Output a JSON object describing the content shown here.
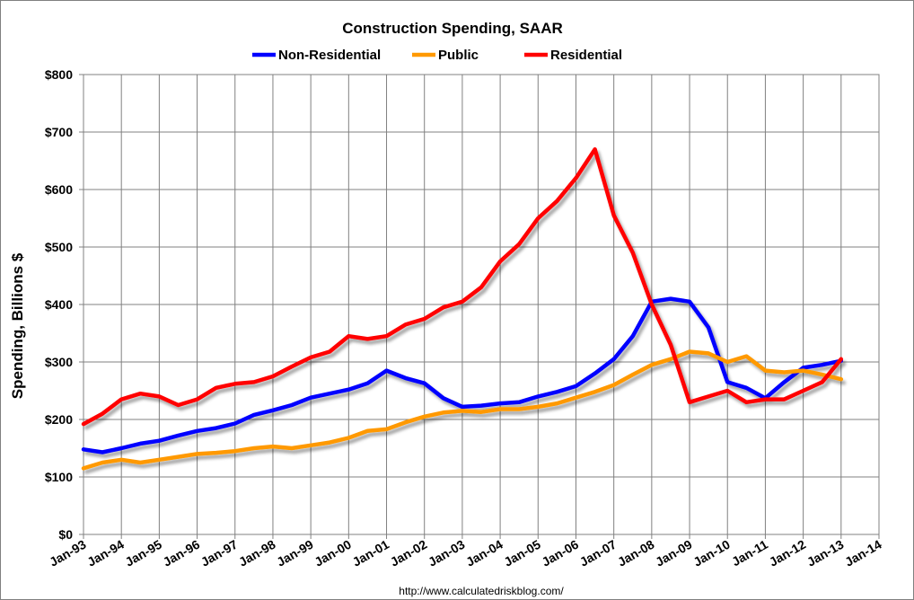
{
  "chart_data": {
    "type": "line",
    "title": "Construction Spending, SAAR",
    "ylabel": "Spending, Billions $",
    "xlabel": "",
    "source": "http://www.calculatedriskblog.com/",
    "legend_position": "top-center",
    "grid": true,
    "ylim": [
      0,
      800
    ],
    "y_ticks": [
      0,
      100,
      200,
      300,
      400,
      500,
      600,
      700,
      800
    ],
    "y_tick_labels": [
      "$0",
      "$100",
      "$200",
      "$300",
      "$400",
      "$500",
      "$600",
      "$700",
      "$800"
    ],
    "x_tick_labels": [
      "Jan-93",
      "Jan-94",
      "Jan-95",
      "Jan-96",
      "Jan-97",
      "Jan-98",
      "Jan-99",
      "Jan-00",
      "Jan-01",
      "Jan-02",
      "Jan-03",
      "Jan-04",
      "Jan-05",
      "Jan-06",
      "Jan-07",
      "Jan-08",
      "Jan-09",
      "Jan-10",
      "Jan-11",
      "Jan-12",
      "Jan-13",
      "Jan-14"
    ],
    "series": [
      {
        "name": "Non-Residential",
        "color": "#0000ff",
        "x": [
          "Jan-93",
          "Jul-93",
          "Jan-94",
          "Jul-94",
          "Jan-95",
          "Jul-95",
          "Jan-96",
          "Jul-96",
          "Jan-97",
          "Jul-97",
          "Jan-98",
          "Jul-98",
          "Jan-99",
          "Jul-99",
          "Jan-00",
          "Jul-00",
          "Jan-01",
          "Jul-01",
          "Jan-02",
          "Jul-02",
          "Jan-03",
          "Jul-03",
          "Jan-04",
          "Jul-04",
          "Jan-05",
          "Jul-05",
          "Jan-06",
          "Jul-06",
          "Jan-07",
          "Jul-07",
          "Jan-08",
          "Jul-08",
          "Jan-09",
          "Jul-09",
          "Jan-10",
          "Jul-10",
          "Jan-11",
          "Jul-11",
          "Jan-12",
          "Jul-12",
          "Jan-13"
        ],
        "values": [
          148,
          143,
          150,
          158,
          163,
          172,
          180,
          185,
          193,
          208,
          216,
          225,
          238,
          245,
          252,
          263,
          285,
          272,
          263,
          237,
          222,
          224,
          228,
          230,
          240,
          248,
          258,
          280,
          305,
          345,
          405,
          410,
          405,
          360,
          265,
          255,
          237,
          265,
          290,
          295,
          302
        ]
      },
      {
        "name": "Public",
        "color": "#ff9900",
        "x": [
          "Jan-93",
          "Jul-93",
          "Jan-94",
          "Jul-94",
          "Jan-95",
          "Jul-95",
          "Jan-96",
          "Jul-96",
          "Jan-97",
          "Jul-97",
          "Jan-98",
          "Jul-98",
          "Jan-99",
          "Jul-99",
          "Jan-00",
          "Jul-00",
          "Jan-01",
          "Jul-01",
          "Jan-02",
          "Jul-02",
          "Jan-03",
          "Jul-03",
          "Jan-04",
          "Jul-04",
          "Jan-05",
          "Jul-05",
          "Jan-06",
          "Jul-06",
          "Jan-07",
          "Jul-07",
          "Jan-08",
          "Jul-08",
          "Jan-09",
          "Jul-09",
          "Jan-10",
          "Jul-10",
          "Jan-11",
          "Jul-11",
          "Jan-12",
          "Jul-12",
          "Jan-13"
        ],
        "values": [
          115,
          125,
          130,
          125,
          130,
          135,
          140,
          142,
          145,
          150,
          153,
          150,
          155,
          160,
          168,
          180,
          183,
          195,
          205,
          212,
          215,
          213,
          218,
          218,
          222,
          228,
          238,
          248,
          260,
          278,
          295,
          305,
          318,
          315,
          300,
          310,
          285,
          282,
          285,
          278,
          270
        ]
      },
      {
        "name": "Residential",
        "color": "#ff0000",
        "x": [
          "Jan-93",
          "Jul-93",
          "Jan-94",
          "Jul-94",
          "Jan-95",
          "Jul-95",
          "Jan-96",
          "Jul-96",
          "Jan-97",
          "Jul-97",
          "Jan-98",
          "Jul-98",
          "Jan-99",
          "Jul-99",
          "Jan-00",
          "Jul-00",
          "Jan-01",
          "Jul-01",
          "Jan-02",
          "Jul-02",
          "Jan-03",
          "Jul-03",
          "Jan-04",
          "Jul-04",
          "Jan-05",
          "Jul-05",
          "Jan-06",
          "Jul-06",
          "Jan-07",
          "Jul-07",
          "Jan-08",
          "Jul-08",
          "Jan-09",
          "Jul-09",
          "Jan-10",
          "Jul-10",
          "Jan-11",
          "Jul-11",
          "Jan-12",
          "Jul-12",
          "Jan-13"
        ],
        "values": [
          192,
          210,
          235,
          245,
          240,
          225,
          235,
          255,
          262,
          265,
          275,
          292,
          308,
          318,
          345,
          340,
          345,
          365,
          375,
          395,
          405,
          430,
          475,
          505,
          550,
          580,
          620,
          670,
          555,
          490,
          400,
          330,
          230,
          240,
          250,
          230,
          235,
          235,
          250,
          265,
          305
        ]
      }
    ]
  }
}
